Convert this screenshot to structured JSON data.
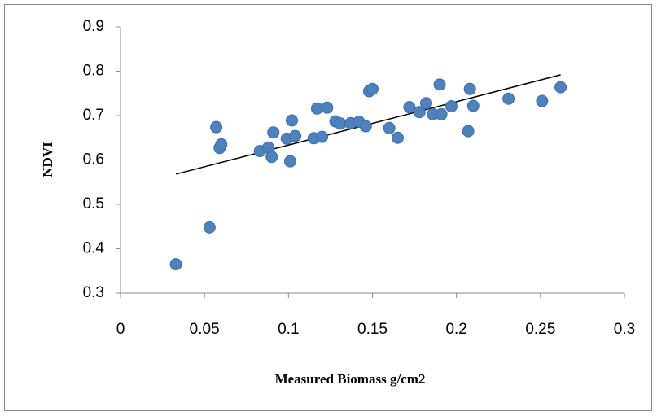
{
  "chart_data": {
    "type": "scatter",
    "x_label": "Measured Biomass g/cm2",
    "y_label": "NDVI",
    "color": "#4f81bd",
    "x": [
      0.033,
      0.053,
      0.057,
      0.059,
      0.06,
      0.083,
      0.088,
      0.09,
      0.091,
      0.099,
      0.101,
      0.102,
      0.104,
      0.115,
      0.117,
      0.12,
      0.123,
      0.128,
      0.131,
      0.137,
      0.142,
      0.146,
      0.148,
      0.15,
      0.16,
      0.165,
      0.172,
      0.178,
      0.182,
      0.186,
      0.19,
      0.191,
      0.197,
      0.207,
      0.208,
      0.21,
      0.231,
      0.251,
      0.262
    ],
    "values": [
      0.365,
      0.448,
      0.674,
      0.627,
      0.635,
      0.62,
      0.628,
      0.607,
      0.662,
      0.648,
      0.597,
      0.689,
      0.654,
      0.649,
      0.716,
      0.652,
      0.718,
      0.687,
      0.682,
      0.683,
      0.686,
      0.676,
      0.755,
      0.76,
      0.672,
      0.65,
      0.719,
      0.708,
      0.728,
      0.703,
      0.77,
      0.703,
      0.721,
      0.665,
      0.76,
      0.722,
      0.738,
      0.733,
      0.764
    ],
    "trendline": {
      "x": [
        0.033,
        0.262
      ],
      "values": [
        0.568,
        0.792
      ]
    },
    "xlim": [
      0,
      0.3
    ],
    "xticks": [
      0,
      0.05,
      0.1,
      0.15,
      0.2,
      0.25,
      0.3
    ],
    "ylim": [
      0.3,
      0.9
    ],
    "yticks": [
      0.3,
      0.4,
      0.5,
      0.6,
      0.7,
      0.8,
      0.9
    ],
    "grid": false
  }
}
